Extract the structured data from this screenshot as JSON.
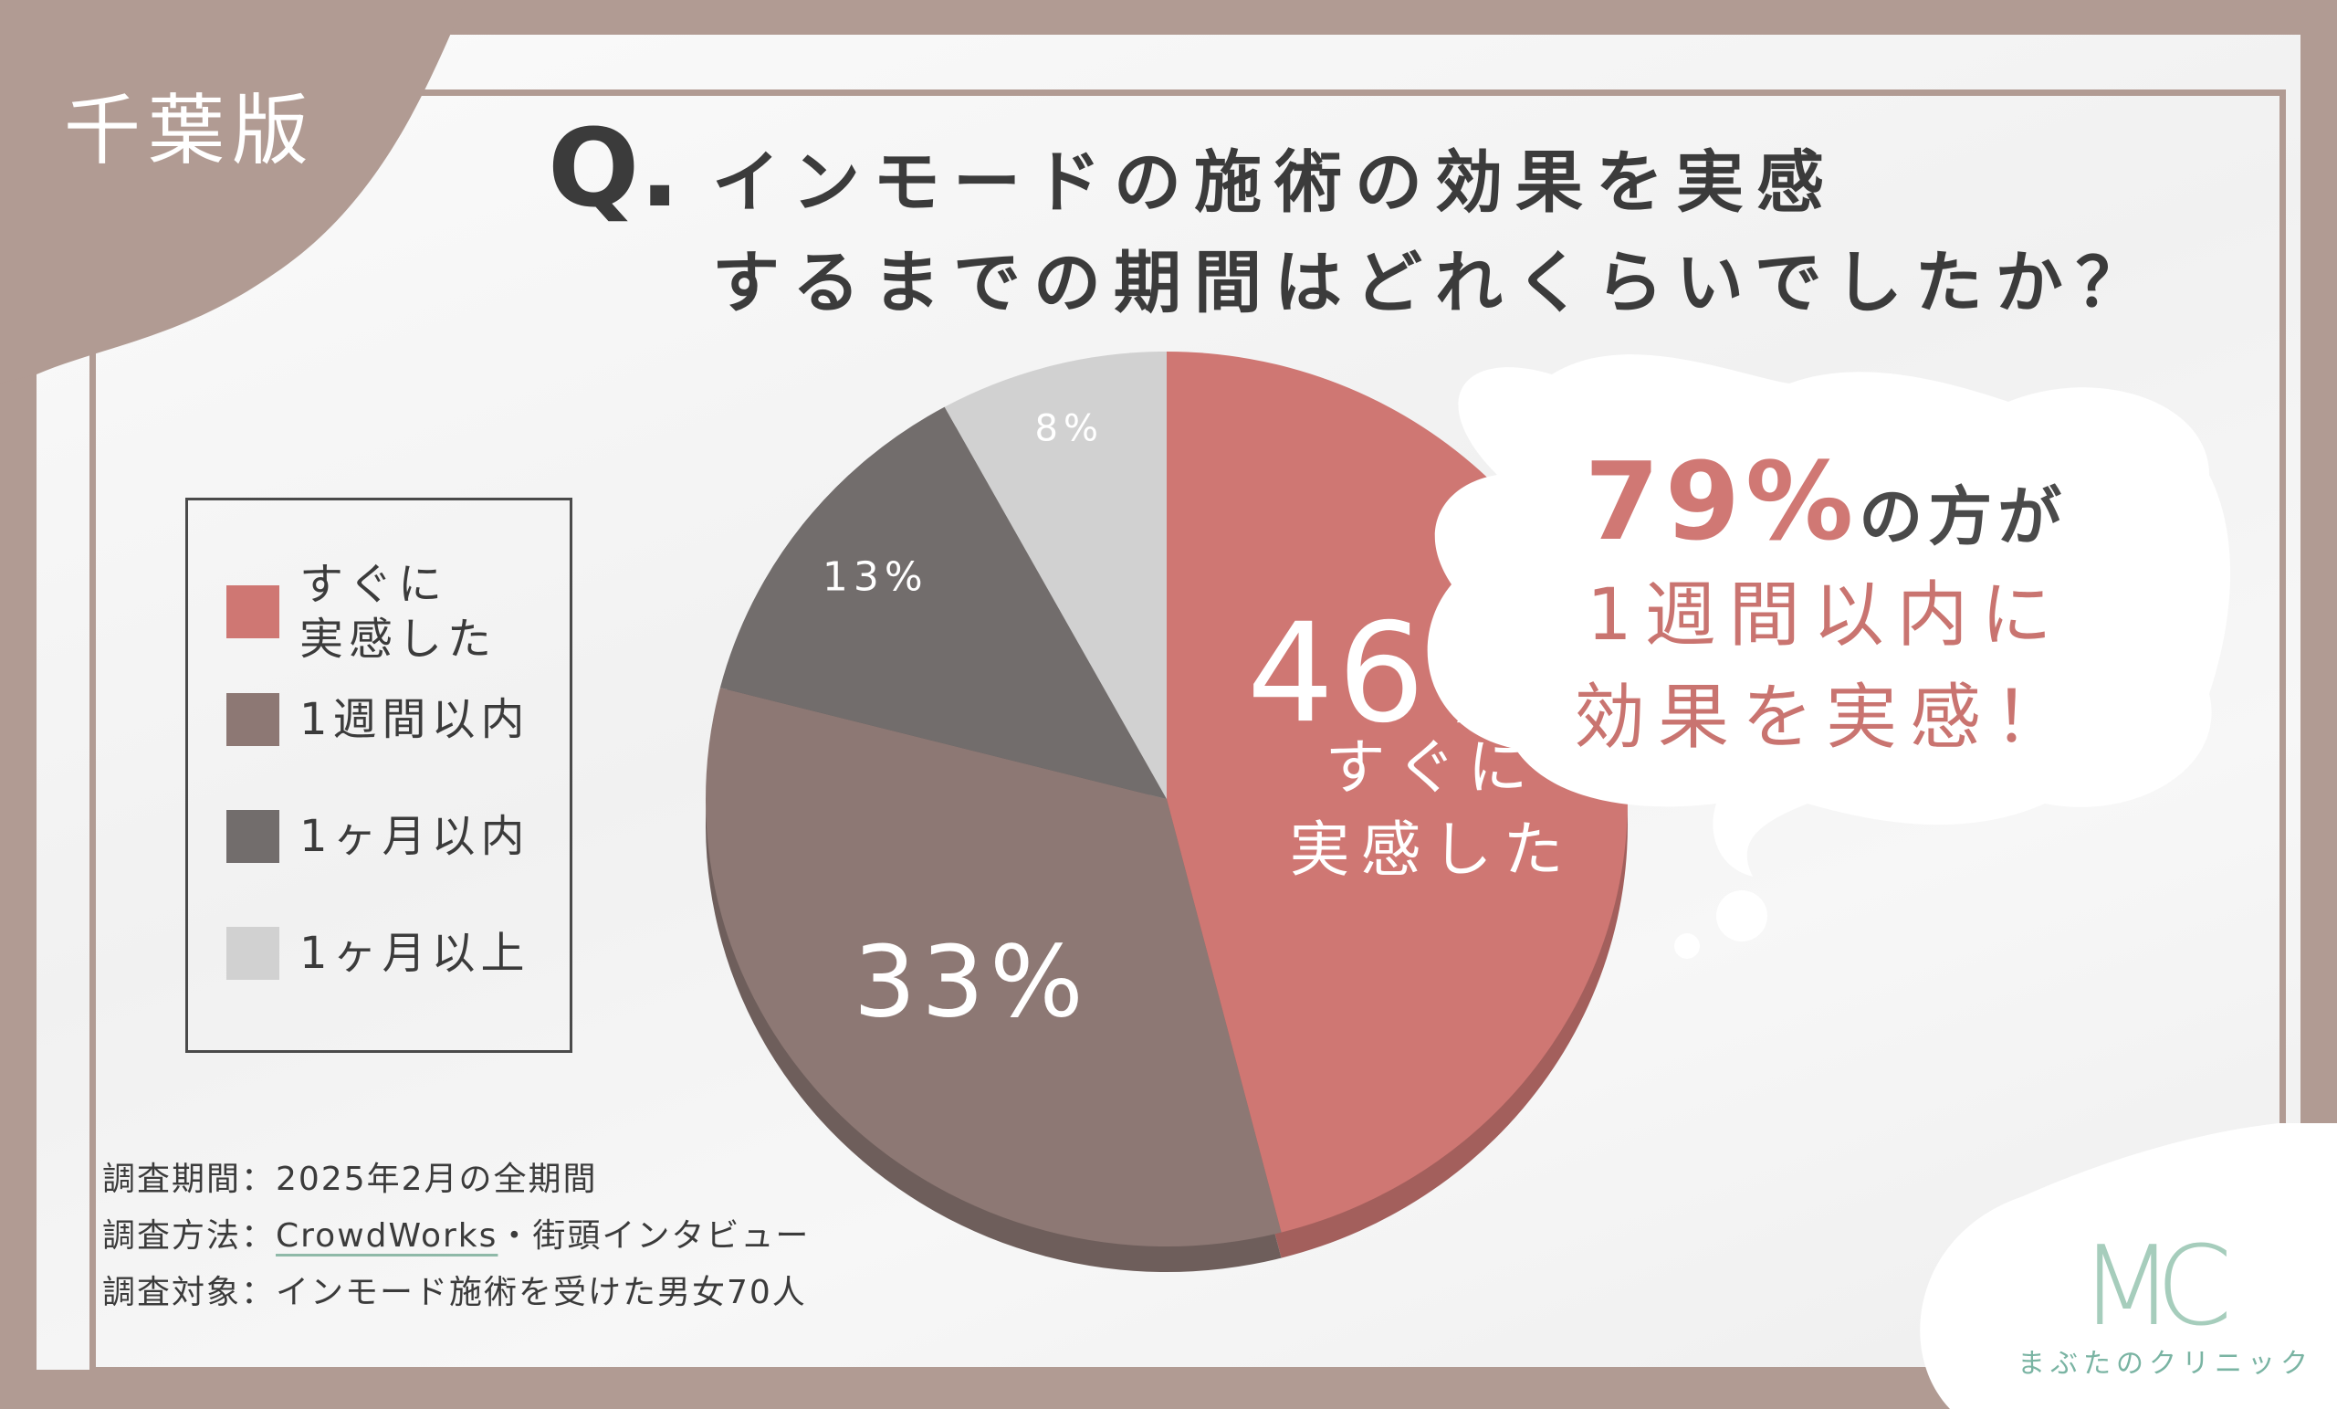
{
  "region_label": "千葉版",
  "question": {
    "mark": "Q.",
    "line1": "インモードの施術の効果を実感",
    "line2": "するまでの期間はどれくらいでしたか？"
  },
  "chart_data": {
    "type": "pie",
    "slices": [
      {
        "label": "すぐに実感した",
        "value": 46,
        "display": "46%",
        "sublabel": "すぐに\n実感した",
        "color": "#cf7773",
        "side": "#a35f5c"
      },
      {
        "label": "1週間以内",
        "value": 33,
        "display": "33%",
        "color": "#8d7874",
        "side": "#6e5e5b"
      },
      {
        "label": "1ヶ月以内",
        "value": 13,
        "display": "13%",
        "color": "#726d6c",
        "side": "#5a5656"
      },
      {
        "label": "1ヶ月以上",
        "value": 8,
        "display": "8%",
        "color": "#d1d1d1",
        "side": "#a9a9a9"
      }
    ],
    "legend": [
      "すぐに\n実感した",
      "1週間以内",
      "1ヶ月以内",
      "1ヶ月以上"
    ],
    "legend_position": "left"
  },
  "callout": {
    "percent": "79%",
    "line1_rest": "の方が",
    "line2": "1週間以内に",
    "line3": "効果を実感！"
  },
  "footnotes": {
    "period": "調査期間：2025年2月の全期間",
    "method_prefix": "調査方法：",
    "method_link": "CrowdWorks",
    "method_suffix": "・街頭インタビュー",
    "target": "調査対象：インモード施術を受けた男女70人"
  },
  "brand": {
    "logo": "MC",
    "name": "まぶたのクリニック"
  },
  "colors": {
    "frame": "#b19b93",
    "text": "#3b3b3b",
    "accent": "#cf7773",
    "brand": "#7ab4a3"
  }
}
